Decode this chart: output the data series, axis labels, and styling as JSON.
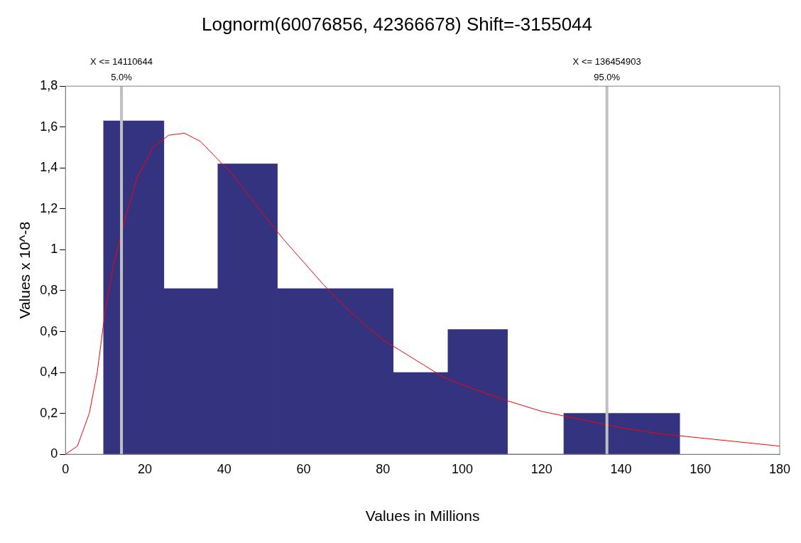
{
  "chart_data": {
    "type": "histogram",
    "title": "Lognorm(60076856, 42366678) Shift=-3155044",
    "xlabel": "Values in Millions",
    "ylabel": "Values x 10^-8",
    "bins": [
      9.6,
      24.8,
      38.4,
      53.4,
      68.0,
      82.6,
      96.4,
      111.4,
      125.6,
      140.2,
      154.8
    ],
    "values": [
      1.63,
      0.81,
      1.42,
      0.81,
      0.81,
      0.4,
      0.61,
      0,
      0.2,
      0.2
    ],
    "color": "#33337f",
    "series": [
      {
        "type": "line",
        "color": "#ff0000",
        "x": [
          0,
          3,
          6,
          8,
          10,
          12,
          15,
          18,
          22,
          26,
          30,
          34,
          38,
          42,
          46,
          50,
          55,
          60,
          65,
          70,
          75,
          80,
          85,
          90,
          95,
          100,
          110,
          120,
          130,
          140,
          150,
          160,
          170,
          180
        ],
        "values": [
          0,
          0.04,
          0.2,
          0.4,
          0.7,
          0.92,
          1.15,
          1.35,
          1.5,
          1.56,
          1.57,
          1.53,
          1.45,
          1.37,
          1.27,
          1.17,
          1.05,
          0.94,
          0.83,
          0.73,
          0.64,
          0.56,
          0.5,
          0.44,
          0.38,
          0.34,
          0.27,
          0.21,
          0.17,
          0.13,
          0.1,
          0.08,
          0.06,
          0.04
        ]
      }
    ],
    "ref_lines": [
      {
        "axis": "x",
        "value": 14.110644,
        "label": "X <= 14110644\n5.0%",
        "color": "#c0c0c0"
      },
      {
        "axis": "x",
        "value": 136.454903,
        "label": "X <= 136454903\n95.0%",
        "color": "#c0c0c0"
      }
    ],
    "xlim": [
      0,
      180
    ],
    "xticks": [
      0,
      20,
      40,
      60,
      80,
      100,
      120,
      140,
      160,
      180
    ],
    "ylim": [
      0,
      1.8
    ],
    "yticks": [
      {
        "value": 0,
        "label": "0"
      },
      {
        "value": 0.2,
        "label": "0,2"
      },
      {
        "value": 0.4,
        "label": "0,4"
      },
      {
        "value": 0.6,
        "label": "0,6"
      },
      {
        "value": 0.8,
        "label": "0,8"
      },
      {
        "value": 1,
        "label": "1"
      },
      {
        "value": 1.2,
        "label": "1,2"
      },
      {
        "value": 1.4,
        "label": "1,4"
      },
      {
        "value": 1.6,
        "label": "1,6"
      },
      {
        "value": 1.8,
        "label": "1,8"
      }
    ],
    "grid": false,
    "legend": false
  }
}
